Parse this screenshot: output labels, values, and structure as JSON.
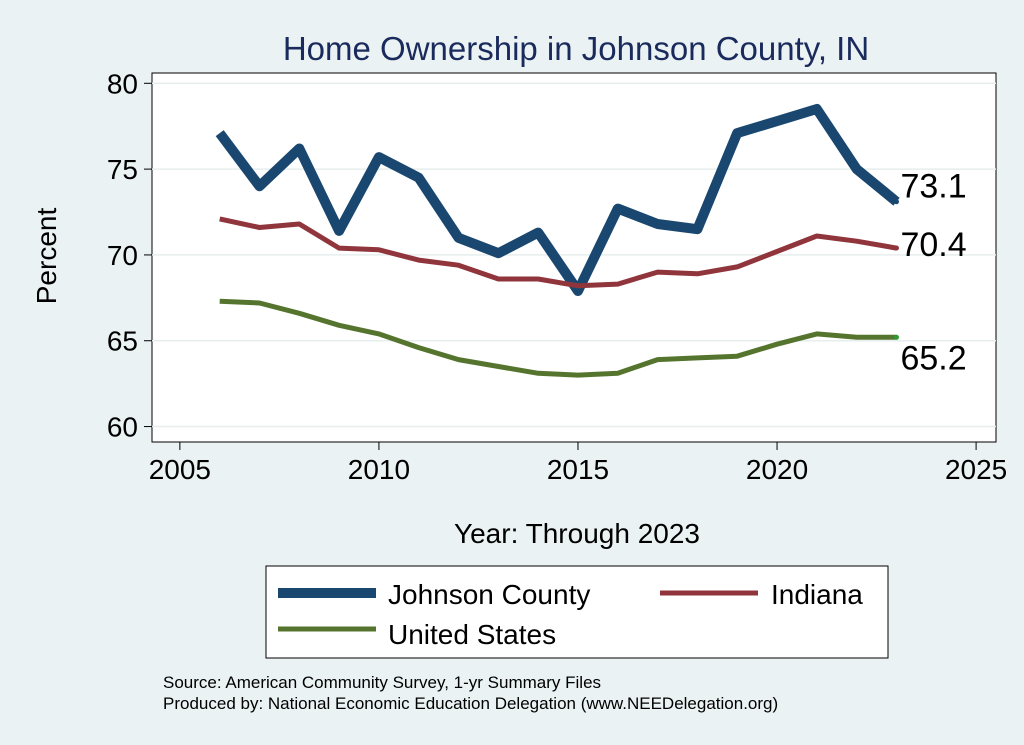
{
  "chart_data": {
    "type": "line",
    "title": "Home Ownership in Johnson County, IN",
    "xlabel": "Year: Through 2023",
    "ylabel": "Percent",
    "xlim": [
      2004.3,
      2025.5
    ],
    "ylim": [
      59.1,
      80.6
    ],
    "x_ticks": [
      2005,
      2010,
      2015,
      2020,
      2025
    ],
    "y_ticks": [
      60,
      65,
      70,
      75,
      80
    ],
    "x_tick_labels": [
      "2005",
      "2010",
      "2015",
      "2020",
      "2025"
    ],
    "y_tick_labels": [
      "60",
      "65",
      "70",
      "75",
      "80"
    ],
    "grid": true,
    "legend_position": "bottom",
    "x": [
      2006,
      2007,
      2008,
      2009,
      2010,
      2011,
      2012,
      2013,
      2014,
      2015,
      2016,
      2017,
      2018,
      2019,
      2020,
      2021,
      2022,
      2023
    ],
    "series": [
      {
        "name": "Johnson County",
        "color": "#1a476f",
        "values": [
          77.1,
          74.0,
          76.2,
          71.4,
          75.7,
          74.5,
          71.0,
          70.1,
          71.3,
          67.9,
          72.7,
          71.8,
          71.5,
          77.1,
          77.8,
          78.5,
          75.0,
          73.1
        ],
        "end_label": "73.1"
      },
      {
        "name": "Indiana",
        "color": "#90353b",
        "values": [
          72.1,
          71.6,
          71.8,
          70.4,
          70.3,
          69.7,
          69.4,
          68.6,
          68.6,
          68.2,
          68.3,
          69.0,
          68.9,
          69.3,
          70.2,
          71.1,
          70.8,
          70.4
        ],
        "end_label": "70.4"
      },
      {
        "name": "United States",
        "color": "#55752f",
        "values": [
          67.3,
          67.2,
          66.6,
          65.9,
          65.4,
          64.6,
          63.9,
          63.5,
          63.1,
          63.0,
          63.1,
          63.9,
          64.0,
          64.1,
          64.8,
          65.4,
          65.2,
          65.2
        ],
        "end_label": "65.2"
      }
    ]
  },
  "source_text": "Source: American Community Survey, 1-yr Summary Files",
  "produced_text": "Produced by: National Economic Education Delegation (www.NEEDelegation.org)"
}
